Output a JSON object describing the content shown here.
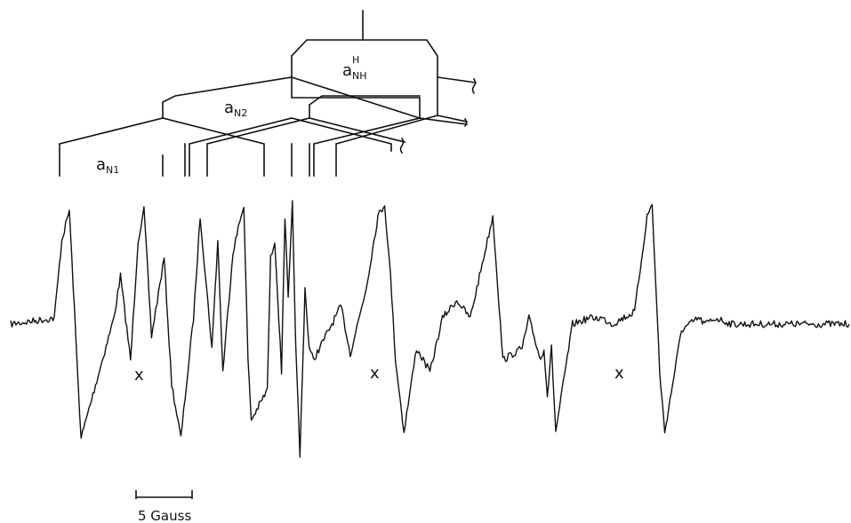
{
  "chart_data": {
    "type": "line",
    "title": "",
    "xlabel": "",
    "ylabel": "",
    "splitting_labels": {
      "nh": {
        "main": "a",
        "sub": "NH",
        "sup": "H"
      },
      "n2": {
        "main": "a",
        "sub": "N2"
      },
      "n1": {
        "main": "a",
        "sub": "N1"
      }
    },
    "impurity_marker": "x",
    "scale_bar_label": "5 Gauss",
    "series": [
      {
        "x": [
          0.0,
          5.2,
          6.1,
          7.0,
          7.9,
          8.4,
          12.3,
          13.1,
          14.3,
          15.2,
          15.9,
          16.8,
          18.3,
          19.2,
          20.3,
          21.8,
          22.6,
          24.0,
          24.7,
          25.3,
          26.5,
          27.8,
          28.3,
          28.7,
          30.6,
          31.0,
          31.5,
          32.3,
          32.7,
          33.1,
          33.6,
          34.0,
          34.5,
          35.1,
          35.6,
          36.1,
          38.3,
          39.4,
          40.5,
          42.4,
          43.8,
          44.6,
          45.3,
          45.9,
          46.4,
          46.9,
          48.4,
          50.0,
          51.5,
          53.2,
          54.8,
          57.5,
          58.7,
          61.0,
          61.8,
          63.2,
          63.6,
          64.0,
          64.5,
          65.0,
          67.0,
          69.0,
          70.5,
          71.8,
          73.0,
          74.4,
          75.9,
          76.5,
          77.4,
          78.0,
          80.0,
          82.0,
          82.8,
          84.1,
          86.0,
          88.0,
          100.0
        ],
        "y": [
          0.0,
          0.05,
          0.7,
          0.95,
          -0.3,
          -0.95,
          0.05,
          0.4,
          -0.3,
          0.7,
          0.95,
          -0.1,
          0.55,
          -0.5,
          -0.95,
          0.05,
          0.9,
          -0.2,
          0.7,
          -0.4,
          0.6,
          1.0,
          -0.3,
          -0.8,
          -0.55,
          0.55,
          0.7,
          -0.4,
          0.9,
          0.2,
          1.0,
          -0.2,
          -1.1,
          0.3,
          -0.2,
          -0.3,
          0.0,
          0.15,
          -0.25,
          0.3,
          0.9,
          1.0,
          0.4,
          -0.3,
          -0.6,
          -0.9,
          -0.2,
          -0.4,
          0.05,
          0.2,
          0.05,
          0.9,
          -0.3,
          -0.2,
          0.05,
          -0.3,
          -0.2,
          -0.6,
          -0.2,
          -0.9,
          0.0,
          0.05,
          0.05,
          0.0,
          0.05,
          0.1,
          0.9,
          1.0,
          -0.4,
          -0.9,
          -0.05,
          0.05,
          0.0,
          0.05,
          0.0,
          0.0,
          0.0
        ]
      }
    ]
  }
}
